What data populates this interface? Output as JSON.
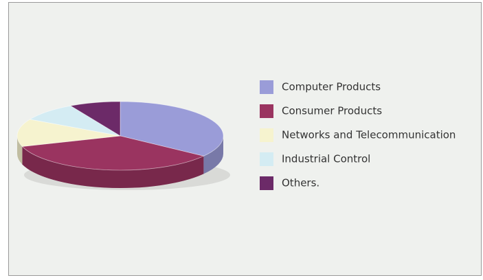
{
  "chart_data": {
    "type": "pie",
    "categories": [
      "Computer Products",
      "Consumer Products",
      "Networks and Telecommunication",
      "Industrial Control",
      "Others."
    ],
    "values": [
      35,
      35,
      13,
      9,
      8
    ],
    "colors": [
      "#9a9cd8",
      "#9a3460",
      "#f6f3cf",
      "#d4ecf3",
      "#6c2a68"
    ]
  }
}
